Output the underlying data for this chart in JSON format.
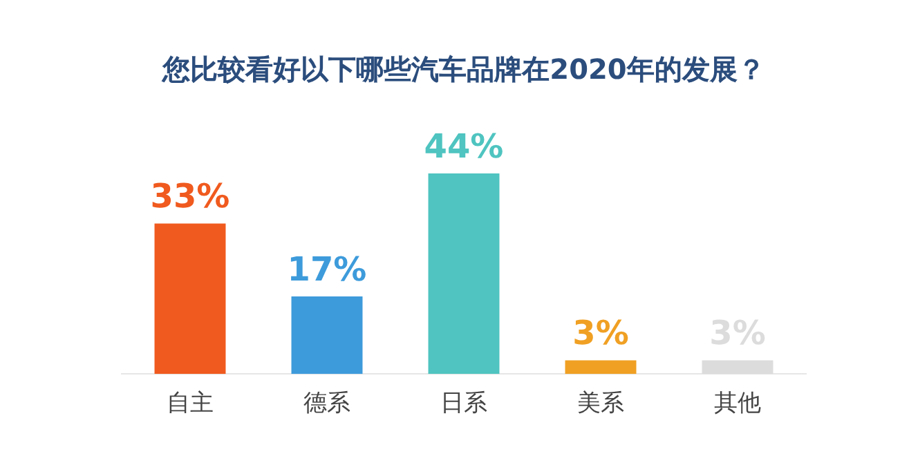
{
  "chart_data": {
    "type": "bar",
    "title": "您比较看好以下哪些汽车品牌在2020年的发展？",
    "categories": [
      "自主",
      "德系",
      "日系",
      "美系",
      "其他"
    ],
    "values": [
      33,
      17,
      44,
      3,
      3
    ],
    "colors": [
      "#f05a1e",
      "#3d9bdb",
      "#4fc4c0",
      "#f0a023",
      "#dcdcdc"
    ],
    "value_labels": [
      "33%",
      "17%",
      "44%",
      "3%",
      "3%"
    ],
    "grid": false,
    "legend": false
  }
}
